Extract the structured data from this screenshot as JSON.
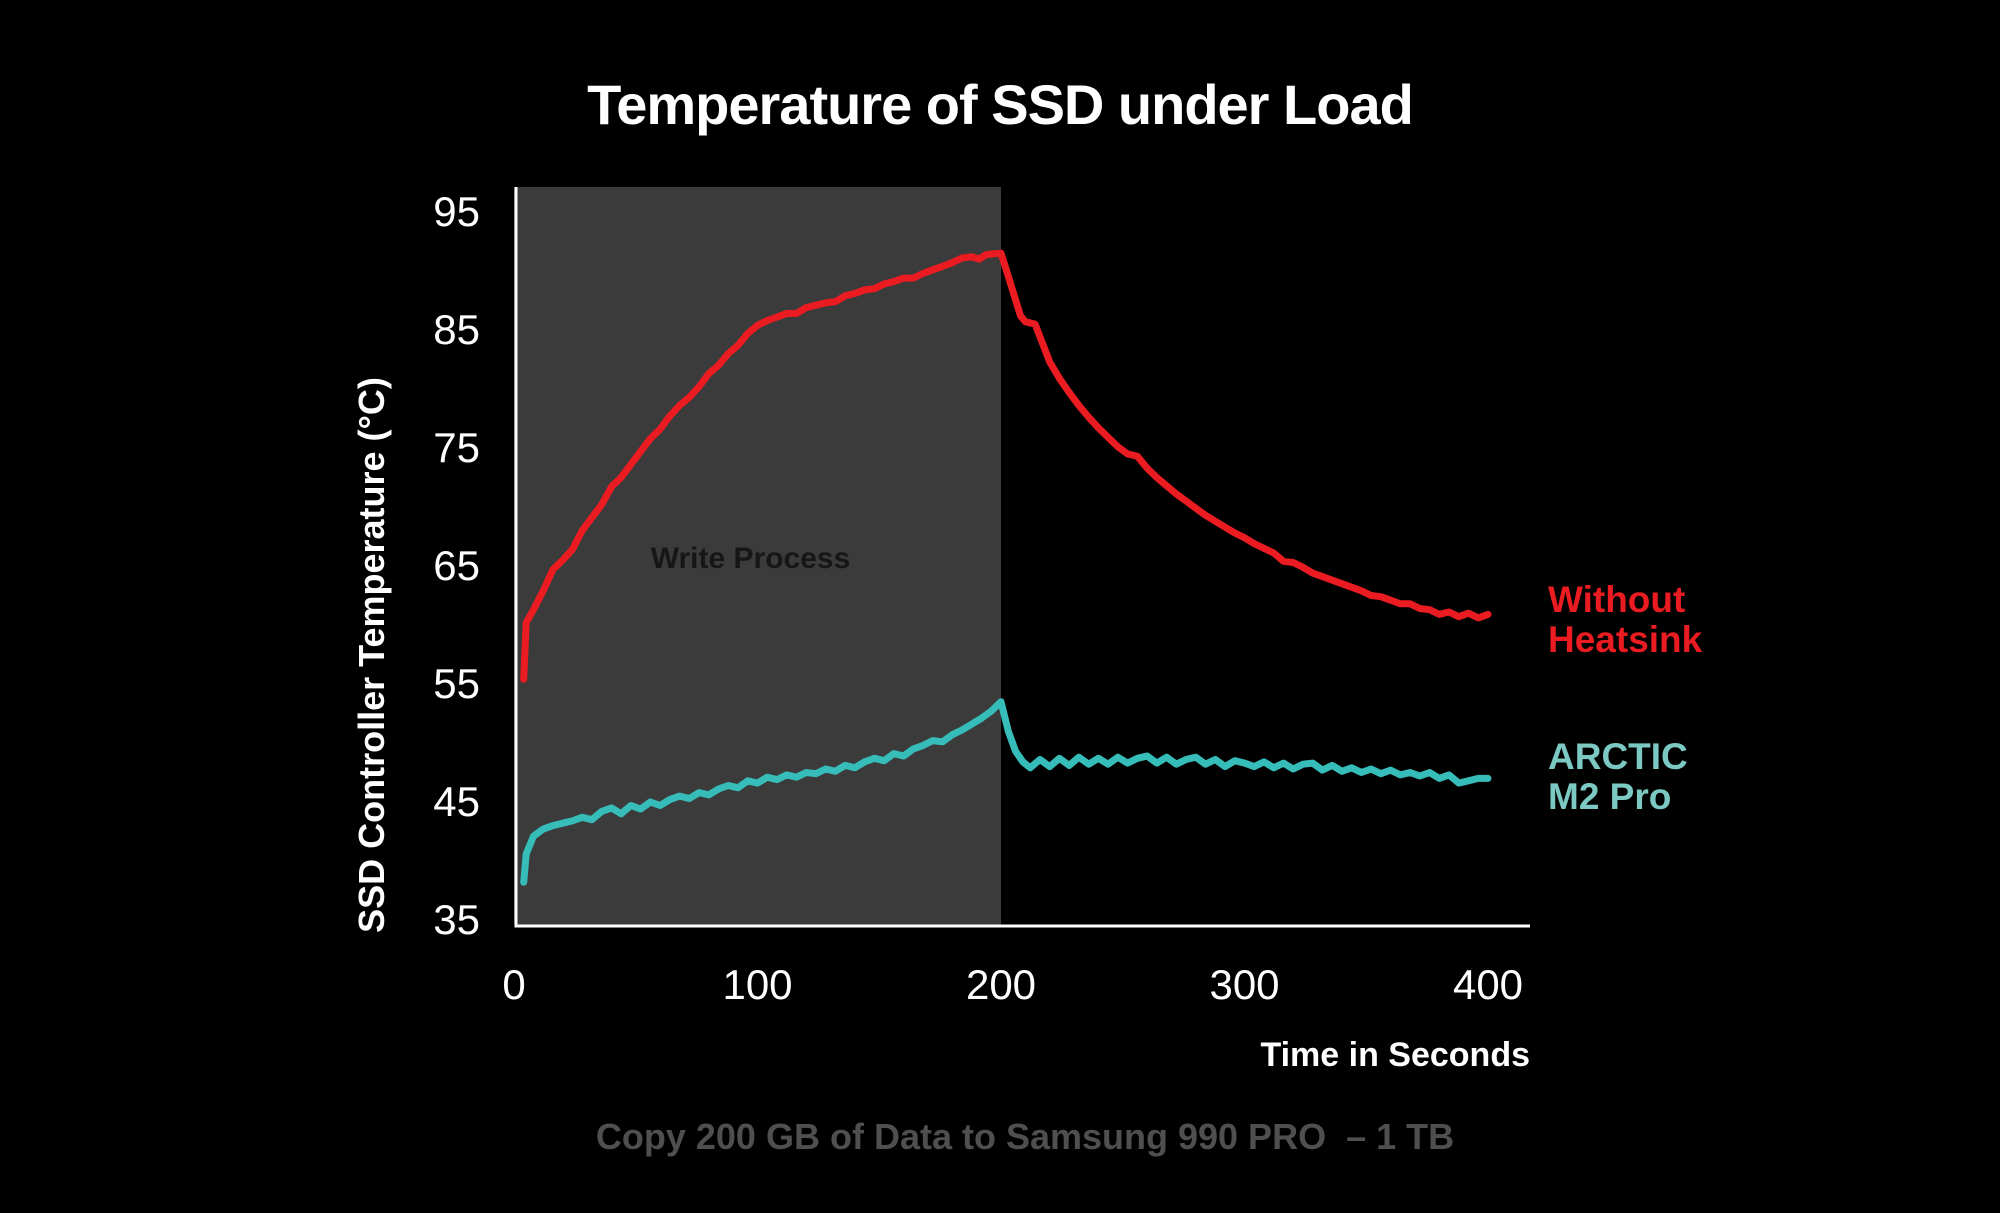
{
  "title": "Temperature of SSD under Load",
  "x_axis_label": "Time in Seconds",
  "y_axis_label": "SSD Controller Temperature (°C)",
  "annotation": "Write Process",
  "caption": "Copy 200 GB of Data to Samsung 990 PRO  – 1 TB",
  "legend": {
    "series1_line1": "Without",
    "series1_line2": "Heatsink",
    "series2_line1": "ARCTIC",
    "series2_line2": "M2 Pro"
  },
  "colors": {
    "background": "#000000",
    "axis": "#ffffff",
    "red_series": "#ea1c21",
    "teal_series": "#36bdba",
    "teal_label": "#7cc8c2",
    "shade": "#3b3b3b",
    "annotation_text": "#161616",
    "caption_text": "#4f4f4f"
  },
  "chart_data": {
    "type": "line",
    "title": "Temperature of SSD under Load",
    "xlabel": "Time in Seconds",
    "ylabel": "SSD Controller Temperature (°C)",
    "xlim": [
      0,
      418
    ],
    "ylim": [
      35,
      97
    ],
    "x_ticks": [
      0,
      100,
      200,
      300,
      400
    ],
    "y_ticks": [
      35,
      45,
      55,
      65,
      75,
      85,
      95
    ],
    "grid": false,
    "legend_position": "right-outside",
    "shaded_region": {
      "label": "Write Process",
      "x_start": 0,
      "x_end": 200
    },
    "series": [
      {
        "name": "Without Heatsink",
        "color": "#ea1c21",
        "points": [
          [
            4,
            55.4
          ],
          [
            5,
            60.2
          ],
          [
            8,
            61.3
          ],
          [
            12,
            62.9
          ],
          [
            16,
            64.7
          ],
          [
            20,
            65.5
          ],
          [
            24,
            66.4
          ],
          [
            28,
            68.0
          ],
          [
            32,
            69.1
          ],
          [
            36,
            70.2
          ],
          [
            40,
            71.7
          ],
          [
            44,
            72.5
          ],
          [
            48,
            73.6
          ],
          [
            52,
            74.7
          ],
          [
            56,
            75.8
          ],
          [
            60,
            76.6
          ],
          [
            64,
            77.7
          ],
          [
            68,
            78.6
          ],
          [
            72,
            79.3
          ],
          [
            76,
            80.2
          ],
          [
            80,
            81.3
          ],
          [
            84,
            82.0
          ],
          [
            88,
            83.0
          ],
          [
            92,
            83.7
          ],
          [
            96,
            84.7
          ],
          [
            100,
            85.4
          ],
          [
            104,
            85.8
          ],
          [
            108,
            86.1
          ],
          [
            112,
            86.4
          ],
          [
            116,
            86.4
          ],
          [
            120,
            86.9
          ],
          [
            124,
            87.1
          ],
          [
            128,
            87.3
          ],
          [
            132,
            87.4
          ],
          [
            136,
            87.9
          ],
          [
            140,
            88.1
          ],
          [
            144,
            88.4
          ],
          [
            148,
            88.5
          ],
          [
            152,
            88.9
          ],
          [
            156,
            89.1
          ],
          [
            160,
            89.4
          ],
          [
            164,
            89.4
          ],
          [
            168,
            89.8
          ],
          [
            172,
            90.1
          ],
          [
            176,
            90.4
          ],
          [
            180,
            90.7
          ],
          [
            184,
            91.1
          ],
          [
            188,
            91.2
          ],
          [
            191,
            91.0
          ],
          [
            194,
            91.4
          ],
          [
            200,
            91.5
          ],
          [
            202,
            90.2
          ],
          [
            205,
            88.2
          ],
          [
            208,
            86.2
          ],
          [
            210,
            85.7
          ],
          [
            214,
            85.5
          ],
          [
            217,
            83.9
          ],
          [
            220,
            82.3
          ],
          [
            224,
            80.9
          ],
          [
            228,
            79.7
          ],
          [
            232,
            78.6
          ],
          [
            236,
            77.6
          ],
          [
            240,
            76.7
          ],
          [
            244,
            75.9
          ],
          [
            248,
            75.1
          ],
          [
            252,
            74.5
          ],
          [
            256,
            74.3
          ],
          [
            260,
            73.3
          ],
          [
            264,
            72.5
          ],
          [
            268,
            71.8
          ],
          [
            272,
            71.1
          ],
          [
            276,
            70.5
          ],
          [
            280,
            69.9
          ],
          [
            284,
            69.3
          ],
          [
            288,
            68.8
          ],
          [
            292,
            68.3
          ],
          [
            296,
            67.8
          ],
          [
            300,
            67.4
          ],
          [
            304,
            66.9
          ],
          [
            308,
            66.5
          ],
          [
            312,
            66.1
          ],
          [
            316,
            65.4
          ],
          [
            320,
            65.3
          ],
          [
            324,
            64.9
          ],
          [
            328,
            64.4
          ],
          [
            332,
            64.1
          ],
          [
            336,
            63.8
          ],
          [
            340,
            63.5
          ],
          [
            344,
            63.2
          ],
          [
            348,
            62.9
          ],
          [
            352,
            62.5
          ],
          [
            356,
            62.4
          ],
          [
            360,
            62.1
          ],
          [
            364,
            61.8
          ],
          [
            368,
            61.8
          ],
          [
            372,
            61.4
          ],
          [
            376,
            61.3
          ],
          [
            380,
            60.9
          ],
          [
            384,
            61.1
          ],
          [
            388,
            60.7
          ],
          [
            392,
            61.0
          ],
          [
            396,
            60.6
          ],
          [
            400,
            60.9
          ]
        ]
      },
      {
        "name": "ARCTIC M2 Pro",
        "color": "#36bdba",
        "label_color": "#7cc8c2",
        "points": [
          [
            4,
            38.2
          ],
          [
            5,
            40.6
          ],
          [
            8,
            42.1
          ],
          [
            12,
            42.7
          ],
          [
            16,
            43.0
          ],
          [
            20,
            43.2
          ],
          [
            24,
            43.4
          ],
          [
            28,
            43.7
          ],
          [
            32,
            43.5
          ],
          [
            36,
            44.2
          ],
          [
            40,
            44.5
          ],
          [
            44,
            44.0
          ],
          [
            48,
            44.7
          ],
          [
            52,
            44.4
          ],
          [
            56,
            45.0
          ],
          [
            60,
            44.7
          ],
          [
            64,
            45.2
          ],
          [
            68,
            45.5
          ],
          [
            72,
            45.3
          ],
          [
            76,
            45.8
          ],
          [
            80,
            45.6
          ],
          [
            84,
            46.1
          ],
          [
            88,
            46.4
          ],
          [
            92,
            46.2
          ],
          [
            96,
            46.8
          ],
          [
            100,
            46.6
          ],
          [
            104,
            47.1
          ],
          [
            108,
            46.9
          ],
          [
            112,
            47.3
          ],
          [
            116,
            47.1
          ],
          [
            120,
            47.5
          ],
          [
            124,
            47.4
          ],
          [
            128,
            47.8
          ],
          [
            132,
            47.6
          ],
          [
            136,
            48.1
          ],
          [
            140,
            47.9
          ],
          [
            144,
            48.4
          ],
          [
            148,
            48.7
          ],
          [
            152,
            48.5
          ],
          [
            156,
            49.1
          ],
          [
            160,
            48.9
          ],
          [
            164,
            49.5
          ],
          [
            168,
            49.8
          ],
          [
            172,
            50.2
          ],
          [
            176,
            50.1
          ],
          [
            180,
            50.7
          ],
          [
            184,
            51.1
          ],
          [
            188,
            51.6
          ],
          [
            192,
            52.1
          ],
          [
            196,
            52.7
          ],
          [
            200,
            53.5
          ],
          [
            203,
            51.0
          ],
          [
            206,
            49.3
          ],
          [
            209,
            48.4
          ],
          [
            212,
            47.9
          ],
          [
            216,
            48.6
          ],
          [
            220,
            48.0
          ],
          [
            224,
            48.7
          ],
          [
            228,
            48.1
          ],
          [
            232,
            48.8
          ],
          [
            236,
            48.2
          ],
          [
            240,
            48.7
          ],
          [
            244,
            48.2
          ],
          [
            248,
            48.8
          ],
          [
            252,
            48.3
          ],
          [
            256,
            48.7
          ],
          [
            260,
            48.9
          ],
          [
            264,
            48.3
          ],
          [
            268,
            48.8
          ],
          [
            272,
            48.2
          ],
          [
            276,
            48.6
          ],
          [
            280,
            48.8
          ],
          [
            284,
            48.2
          ],
          [
            288,
            48.6
          ],
          [
            292,
            48.0
          ],
          [
            296,
            48.5
          ],
          [
            300,
            48.3
          ],
          [
            304,
            48.0
          ],
          [
            308,
            48.4
          ],
          [
            312,
            47.9
          ],
          [
            316,
            48.3
          ],
          [
            320,
            47.8
          ],
          [
            324,
            48.2
          ],
          [
            328,
            48.3
          ],
          [
            332,
            47.7
          ],
          [
            336,
            48.1
          ],
          [
            340,
            47.6
          ],
          [
            344,
            47.9
          ],
          [
            348,
            47.5
          ],
          [
            352,
            47.8
          ],
          [
            356,
            47.4
          ],
          [
            360,
            47.7
          ],
          [
            364,
            47.3
          ],
          [
            368,
            47.5
          ],
          [
            372,
            47.2
          ],
          [
            376,
            47.5
          ],
          [
            380,
            47.0
          ],
          [
            384,
            47.3
          ],
          [
            388,
            46.6
          ],
          [
            392,
            46.8
          ],
          [
            396,
            47.0
          ],
          [
            400,
            47.0
          ]
        ]
      }
    ]
  }
}
